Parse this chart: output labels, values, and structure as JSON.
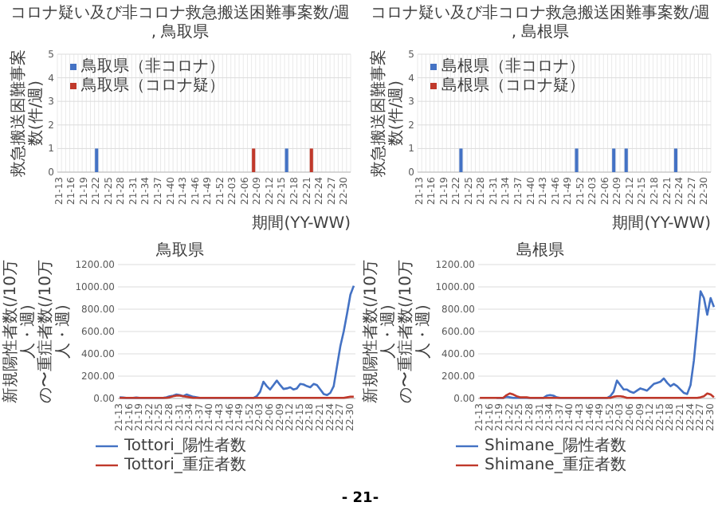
{
  "chart_data": [
    {
      "type": "bar",
      "title": "コロナ疑い及び非コロナ救急搬送困難事案数/週, 鳥取県",
      "xlabel": "期間(YY-WW)",
      "ylabel": "救急搬送困難事案数(件/週)",
      "ylim": [
        0,
        5
      ],
      "yticks": [
        0,
        1,
        2,
        3,
        4,
        5
      ],
      "grid": true,
      "legend": "top left",
      "categories": [
        "21-13",
        null,
        null,
        "21-16",
        null,
        null,
        "21-19",
        null,
        null,
        "21-22",
        null,
        null,
        "21-25",
        null,
        null,
        "21-28",
        null,
        null,
        "21-31",
        null,
        null,
        "21-34",
        null,
        null,
        "21-37",
        null,
        null,
        "21-40",
        null,
        null,
        "21-43",
        null,
        null,
        "21-46",
        null,
        null,
        "21-49",
        null,
        null,
        "21-52",
        null,
        null,
        "22-03",
        null,
        null,
        "22-06",
        null,
        null,
        "22-09",
        null,
        null,
        "22-12",
        null,
        null,
        "22-15",
        null,
        null,
        "22-18",
        null,
        null,
        "22-21",
        null,
        null,
        "22-24",
        null,
        null,
        "22-27",
        null,
        null,
        "22-30",
        null
      ],
      "series": [
        {
          "name": "鳥取県（非コロナ）",
          "color": "#4472c4",
          "values": [
            0,
            0,
            0,
            0,
            0,
            0,
            0,
            0,
            0,
            1,
            0,
            0,
            0,
            0,
            0,
            0,
            0,
            0,
            0,
            0,
            0,
            0,
            0,
            0,
            0,
            0,
            0,
            0,
            0,
            0,
            0,
            0,
            0,
            0,
            0,
            0,
            0,
            0,
            0,
            0,
            0,
            0,
            0,
            0,
            0,
            0,
            0,
            0,
            0,
            0,
            0,
            0,
            0,
            0,
            0,
            1,
            0,
            0,
            0,
            0,
            0,
            0,
            0,
            0,
            0,
            0,
            0,
            0,
            0,
            0,
            0
          ]
        },
        {
          "name": "鳥取県（コロナ疑）",
          "color": "#c0392b",
          "values": [
            0,
            0,
            0,
            0,
            0,
            0,
            0,
            0,
            0,
            0,
            0,
            0,
            0,
            0,
            0,
            0,
            0,
            0,
            0,
            0,
            0,
            0,
            0,
            0,
            0,
            0,
            0,
            0,
            0,
            0,
            0,
            0,
            0,
            0,
            0,
            0,
            0,
            0,
            0,
            0,
            0,
            0,
            0,
            0,
            0,
            0,
            0,
            1,
            0,
            0,
            0,
            0,
            0,
            0,
            0,
            0,
            0,
            0,
            0,
            0,
            0,
            1,
            0,
            0,
            0,
            0,
            0,
            0,
            0,
            0,
            0
          ]
        }
      ]
    },
    {
      "type": "bar",
      "title": "コロナ疑い及び非コロナ救急搬送困難事案数/週, 島根県",
      "xlabel": "期間(YY-WW)",
      "ylabel": "救急搬送困難事案数(件/週)",
      "ylim": [
        0,
        5
      ],
      "yticks": [
        0,
        1,
        2,
        3,
        4,
        5
      ],
      "grid": true,
      "legend": "top left",
      "categories": [
        "21-13",
        null,
        null,
        "21-16",
        null,
        null,
        "21-19",
        null,
        null,
        "21-22",
        null,
        null,
        "21-25",
        null,
        null,
        "21-28",
        null,
        null,
        "21-31",
        null,
        null,
        "21-34",
        null,
        null,
        "21-37",
        null,
        null,
        "21-40",
        null,
        null,
        "21-43",
        null,
        null,
        "21-46",
        null,
        null,
        "21-49",
        null,
        null,
        "21-52",
        null,
        null,
        "22-03",
        null,
        null,
        "22-06",
        null,
        null,
        "22-09",
        null,
        null,
        "22-12",
        null,
        null,
        "22-15",
        null,
        null,
        "22-18",
        null,
        null,
        "22-21",
        null,
        null,
        "22-24",
        null,
        null,
        "22-27",
        null,
        null,
        "22-30",
        null
      ],
      "series": [
        {
          "name": "島根県（非コロナ）",
          "color": "#4472c4",
          "values": [
            0,
            0,
            0,
            0,
            0,
            0,
            0,
            0,
            0,
            0,
            1,
            0,
            0,
            0,
            0,
            0,
            0,
            0,
            0,
            0,
            0,
            0,
            0,
            0,
            0,
            0,
            0,
            0,
            0,
            0,
            0,
            0,
            0,
            0,
            0,
            0,
            0,
            0,
            1,
            0,
            0,
            0,
            0,
            0,
            0,
            0,
            0,
            1,
            0,
            0,
            1,
            0,
            0,
            0,
            0,
            0,
            0,
            0,
            0,
            0,
            0,
            0,
            1,
            0,
            0,
            0,
            0,
            0,
            0,
            0,
            0
          ]
        },
        {
          "name": "島根県（コロナ疑）",
          "color": "#c0392b",
          "values": [
            0,
            0,
            0,
            0,
            0,
            0,
            0,
            0,
            0,
            0,
            0,
            0,
            0,
            0,
            0,
            0,
            0,
            0,
            0,
            0,
            0,
            0,
            0,
            0,
            0,
            0,
            0,
            0,
            0,
            0,
            0,
            0,
            0,
            0,
            0,
            0,
            0,
            0,
            0,
            0,
            0,
            0,
            0,
            0,
            0,
            0,
            0,
            0,
            0,
            0,
            0,
            0,
            0,
            0,
            0,
            0,
            0,
            0,
            0,
            0,
            0,
            0,
            0,
            0,
            0,
            0,
            0,
            0,
            0,
            0,
            0
          ]
        }
      ]
    },
    {
      "type": "line",
      "title": "鳥取県",
      "ylabel": "新規陽性者数(/10万人・週)\nの〜重症者数(/10万人・週)",
      "ylim": [
        0,
        1200
      ],
      "yticks": [
        {
          "value": 0,
          "label": "0.00"
        },
        {
          "value": 200,
          "label": "200.00"
        },
        {
          "value": 400,
          "label": "400.00"
        },
        {
          "value": 600,
          "label": "600.00"
        },
        {
          "value": 800,
          "label": "800.00"
        },
        {
          "value": 1000,
          "label": "1000.00"
        },
        {
          "value": 1200,
          "label": "1200.00"
        }
      ],
      "grid": "y",
      "legend": "bottom",
      "categories": [
        "21-13",
        null,
        null,
        "21-16",
        null,
        null,
        "21-19",
        null,
        null,
        "21-22",
        null,
        null,
        "21-25",
        null,
        null,
        "21-28",
        null,
        null,
        "21-31",
        null,
        null,
        "21-34",
        null,
        null,
        "21-37",
        null,
        null,
        "21-40",
        null,
        null,
        "21-43",
        null,
        null,
        "21-46",
        null,
        null,
        "21-49",
        null,
        null,
        "21-52",
        null,
        null,
        "22-03",
        null,
        null,
        "22-06",
        null,
        null,
        "22-09",
        null,
        null,
        "22-12",
        null,
        null,
        "22-15",
        null,
        null,
        "22-18",
        null,
        null,
        "22-21",
        null,
        null,
        "22-24",
        null,
        null,
        "22-27",
        null,
        null,
        "22-30",
        null
      ],
      "series": [
        {
          "name": "Tottori_陽性者数",
          "color": "#4472c4",
          "values": [
            10,
            8,
            5,
            5,
            5,
            8,
            5,
            5,
            5,
            5,
            5,
            5,
            5,
            5,
            10,
            20,
            25,
            35,
            30,
            20,
            35,
            25,
            15,
            10,
            5,
            5,
            5,
            5,
            5,
            5,
            5,
            5,
            5,
            5,
            5,
            5,
            5,
            5,
            5,
            5,
            5,
            20,
            60,
            150,
            110,
            80,
            120,
            160,
            120,
            85,
            90,
            100,
            80,
            90,
            130,
            125,
            110,
            100,
            130,
            120,
            80,
            40,
            30,
            50,
            110,
            290,
            470,
            600,
            760,
            930,
            1010
          ]
        },
        {
          "name": "Tottori_重症者数",
          "color": "#c0392b",
          "values": [
            5,
            5,
            5,
            5,
            5,
            5,
            5,
            5,
            5,
            5,
            5,
            5,
            5,
            5,
            5,
            10,
            20,
            25,
            25,
            20,
            15,
            10,
            5,
            5,
            5,
            5,
            5,
            5,
            5,
            5,
            5,
            5,
            5,
            5,
            5,
            5,
            5,
            5,
            5,
            5,
            5,
            5,
            5,
            5,
            5,
            5,
            5,
            5,
            5,
            5,
            5,
            5,
            5,
            5,
            5,
            5,
            5,
            5,
            5,
            5,
            5,
            5,
            5,
            5,
            5,
            5,
            5,
            5,
            10,
            15,
            15
          ]
        }
      ]
    },
    {
      "type": "line",
      "title": "島根県",
      "ylabel": "新規陽性者数(/10万人・週)\nの〜重症者数(/10万人・週)",
      "ylim": [
        0,
        1200
      ],
      "yticks": [
        {
          "value": 0,
          "label": "0.00"
        },
        {
          "value": 200,
          "label": "200.00"
        },
        {
          "value": 400,
          "label": "400.00"
        },
        {
          "value": 600,
          "label": "600.00"
        },
        {
          "value": 800,
          "label": "800.00"
        },
        {
          "value": 1000,
          "label": "1000.00"
        },
        {
          "value": 1200,
          "label": "1200.00"
        }
      ],
      "grid": "y",
      "legend": "bottom",
      "annotations": [
        "- 21-"
      ],
      "categories": [
        "21-13",
        null,
        null,
        "21-16",
        null,
        null,
        "21-19",
        null,
        null,
        "21-22",
        null,
        null,
        "21-25",
        null,
        null,
        "21-28",
        null,
        null,
        "21-31",
        null,
        null,
        "21-34",
        null,
        null,
        "21-37",
        null,
        null,
        "21-40",
        null,
        null,
        "21-43",
        null,
        null,
        "21-46",
        null,
        null,
        "21-49",
        null,
        null,
        "21-52",
        null,
        null,
        "22-03",
        null,
        null,
        "22-06",
        null,
        null,
        "22-09",
        null,
        null,
        "22-12",
        null,
        null,
        "22-15",
        null,
        null,
        "22-18",
        null,
        null,
        "22-21",
        null,
        null,
        "22-24",
        null,
        null,
        "22-27",
        null,
        null,
        "22-30",
        null
      ],
      "series": [
        {
          "name": "Shimane_陽性者数",
          "color": "#4472c4",
          "values": [
            null,
            null,
            null,
            null,
            null,
            5,
            5,
            5,
            15,
            10,
            5,
            5,
            5,
            5,
            5,
            5,
            5,
            5,
            5,
            5,
            25,
            30,
            25,
            10,
            5,
            5,
            5,
            5,
            5,
            5,
            5,
            5,
            5,
            5,
            5,
            5,
            5,
            5,
            5,
            20,
            60,
            160,
            120,
            80,
            80,
            60,
            50,
            70,
            90,
            80,
            70,
            100,
            130,
            140,
            150,
            180,
            140,
            110,
            130,
            110,
            80,
            50,
            40,
            120,
            340,
            650,
            960,
            900,
            750,
            900,
            820
          ]
        },
        {
          "name": "Shimane_重症者数",
          "color": "#c0392b",
          "values": [
            5,
            5,
            5,
            5,
            5,
            5,
            5,
            5,
            30,
            45,
            35,
            20,
            10,
            10,
            10,
            5,
            5,
            5,
            5,
            5,
            5,
            5,
            5,
            5,
            5,
            5,
            5,
            5,
            5,
            5,
            5,
            5,
            5,
            5,
            5,
            5,
            5,
            5,
            5,
            5,
            15,
            20,
            20,
            15,
            5,
            5,
            5,
            5,
            5,
            5,
            5,
            5,
            5,
            5,
            5,
            5,
            5,
            5,
            5,
            5,
            5,
            5,
            5,
            5,
            5,
            5,
            10,
            20,
            45,
            35,
            10
          ]
        }
      ]
    }
  ]
}
